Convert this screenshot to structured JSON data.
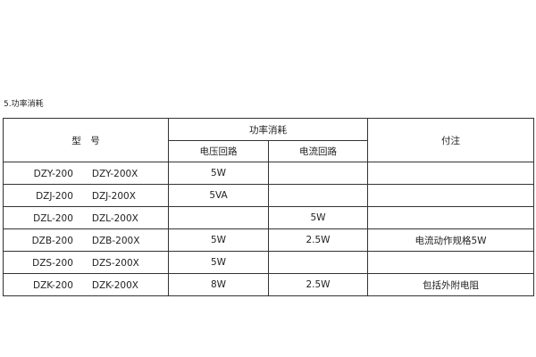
{
  "section_title": "5.功率消耗",
  "table": {
    "header": {
      "model": "型　号",
      "power": "功率消耗",
      "voltage": "电压回路",
      "current": "电流回路",
      "note": "付注"
    },
    "rows": [
      {
        "model": "DZY-200　　DZY-200X",
        "voltage": "5W",
        "current": "",
        "note": ""
      },
      {
        "model": "DZJ-200　　DZJ-200X",
        "voltage": "5VA",
        "current": "",
        "note": ""
      },
      {
        "model": "DZL-200　　DZL-200X",
        "voltage": "",
        "current": "5W",
        "note": ""
      },
      {
        "model": "DZB-200　　DZB-200X",
        "voltage": "5W",
        "current": "2.5W",
        "note": "电流动作规格5W"
      },
      {
        "model": "DZS-200　　DZS-200X",
        "voltage": "5W",
        "current": "",
        "note": ""
      },
      {
        "model": "DZK-200　　DZK-200X",
        "voltage": "8W",
        "current": "2.5W",
        "note": "包括外附电阻"
      }
    ]
  }
}
